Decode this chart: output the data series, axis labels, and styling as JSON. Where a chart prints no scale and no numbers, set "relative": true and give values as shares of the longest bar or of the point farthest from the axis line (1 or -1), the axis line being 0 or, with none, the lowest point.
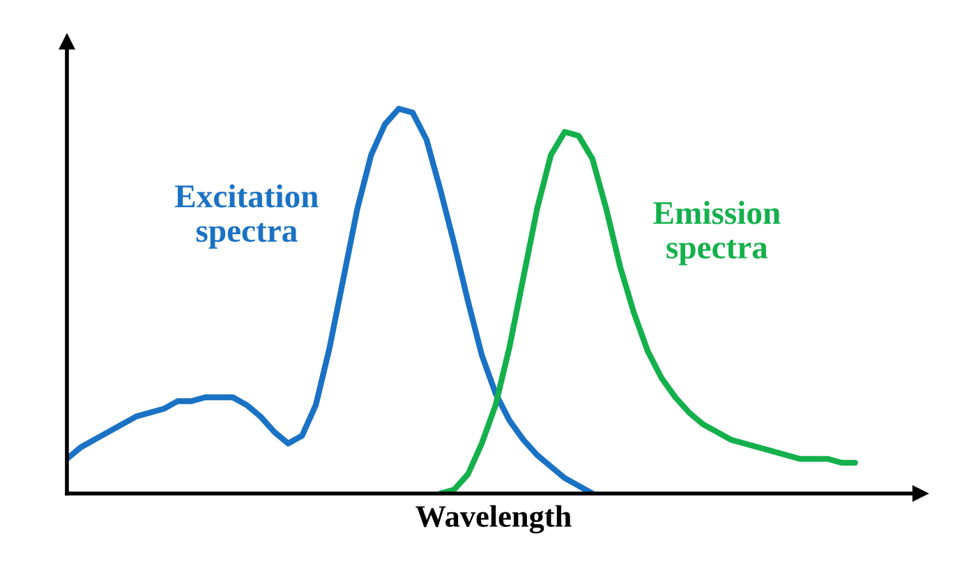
{
  "chart_data": {
    "type": "line",
    "relative": true,
    "xlabel": "Wavelength",
    "legend": false,
    "marker": "none",
    "line_style": "solid",
    "categories": [
      null,
      null,
      null,
      null,
      null,
      null,
      null,
      null,
      null,
      null,
      null,
      null,
      null,
      null,
      null,
      null,
      null,
      null,
      null,
      null,
      null,
      null,
      null,
      null,
      null,
      null,
      null,
      null,
      null,
      null,
      null,
      null,
      null,
      null,
      null,
      null,
      null,
      null,
      null,
      null,
      null,
      null,
      null,
      null,
      null,
      null,
      null,
      null,
      null,
      null,
      null,
      null,
      null,
      null,
      null,
      null,
      null,
      null,
      null,
      null,
      null,
      null
    ],
    "series": [
      {
        "name": "Excitation\nspectra",
        "color": "#1a72c4",
        "values": [
          0.09,
          0.12,
          0.14,
          0.16,
          0.18,
          0.2,
          0.21,
          0.22,
          0.24,
          0.24,
          0.25,
          0.25,
          0.25,
          0.23,
          0.2,
          0.16,
          0.13,
          0.15,
          0.23,
          0.38,
          0.56,
          0.74,
          0.88,
          0.96,
          1.0,
          0.99,
          0.92,
          0.79,
          0.65,
          0.5,
          0.36,
          0.26,
          0.19,
          0.14,
          0.1,
          0.07,
          0.04,
          0.02,
          0,
          null,
          null,
          null,
          null,
          null,
          null,
          null,
          null,
          null,
          null,
          null,
          null,
          null,
          null,
          null,
          null,
          null,
          null,
          null,
          null,
          null,
          null,
          null
        ]
      },
      {
        "name": "Emission\nspectra",
        "color": "#14b04c",
        "values": [
          null,
          null,
          null,
          null,
          null,
          null,
          null,
          null,
          null,
          null,
          null,
          null,
          null,
          null,
          null,
          null,
          null,
          null,
          null,
          null,
          null,
          null,
          null,
          null,
          null,
          null,
          null,
          0,
          0.01,
          0.05,
          0.13,
          0.23,
          0.38,
          0.56,
          0.74,
          0.88,
          0.94,
          0.93,
          0.87,
          0.74,
          0.59,
          0.47,
          0.37,
          0.3,
          0.25,
          0.21,
          0.18,
          0.16,
          0.14,
          0.13,
          0.12,
          0.11,
          0.1,
          0.09,
          0.09,
          0.09,
          0.08,
          0.08,
          null,
          null,
          null,
          null
        ]
      }
    ]
  }
}
